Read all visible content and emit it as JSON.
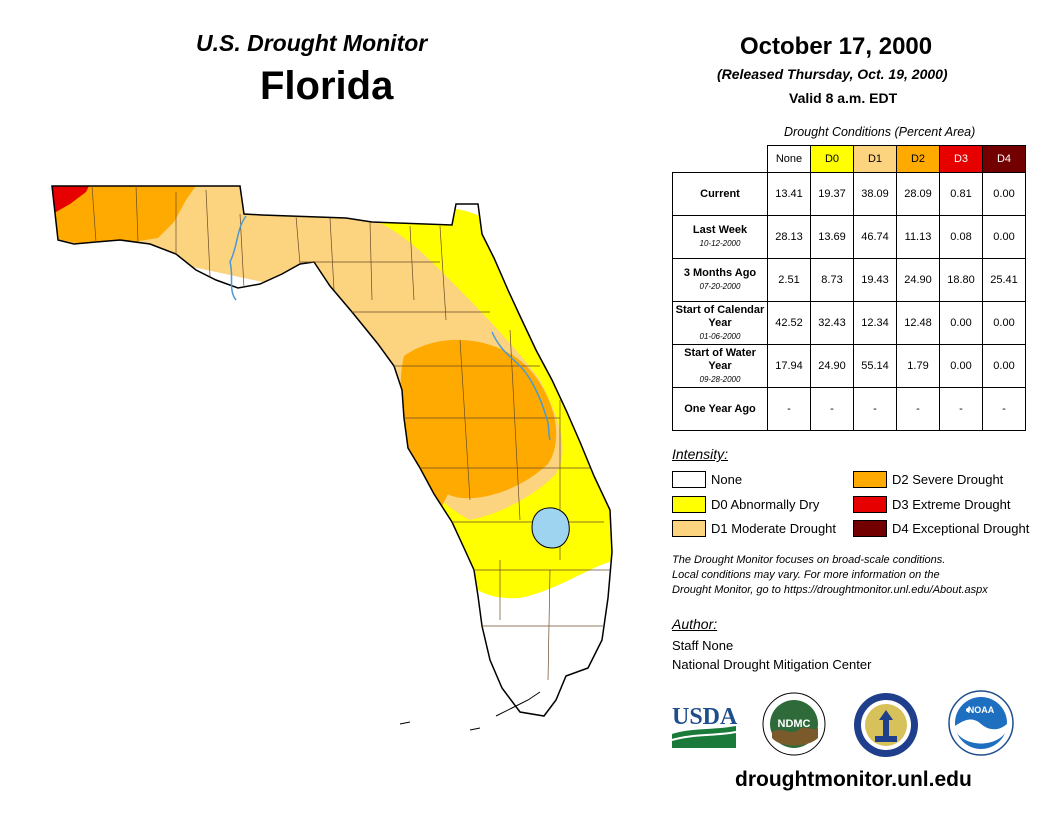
{
  "header": {
    "monitor_title": "U.S. Drought Monitor",
    "state": "Florida",
    "date": "October 17, 2000",
    "released": "(Released Thursday, Oct. 19, 2000)",
    "valid": "Valid 8 a.m. EDT"
  },
  "table": {
    "caption": "Drought Conditions (Percent Area)",
    "columns": [
      {
        "label": "None",
        "bg": "#ffffff",
        "fg": "#000000"
      },
      {
        "label": "D0",
        "bg": "#ffff00",
        "fg": "#000000"
      },
      {
        "label": "D1",
        "bg": "#fcd37f",
        "fg": "#000000"
      },
      {
        "label": "D2",
        "bg": "#ffaa00",
        "fg": "#000000"
      },
      {
        "label": "D3",
        "bg": "#e60000",
        "fg": "#ffffff"
      },
      {
        "label": "D4",
        "bg": "#730000",
        "fg": "#ffffff"
      }
    ],
    "rows": [
      {
        "label": "Current",
        "date": "",
        "values": [
          "13.41",
          "19.37",
          "38.09",
          "28.09",
          "0.81",
          "0.00"
        ]
      },
      {
        "label": "Last Week",
        "date": "10-12-2000",
        "values": [
          "28.13",
          "13.69",
          "46.74",
          "11.13",
          "0.08",
          "0.00"
        ]
      },
      {
        "label": "3 Months Ago",
        "date": "07-20-2000",
        "values": [
          "2.51",
          "8.73",
          "19.43",
          "24.90",
          "18.80",
          "25.41"
        ]
      },
      {
        "label": "Start of Calendar Year",
        "date": "01-06-2000",
        "values": [
          "42.52",
          "32.43",
          "12.34",
          "12.48",
          "0.00",
          "0.00"
        ]
      },
      {
        "label": "Start of Water Year",
        "date": "09-28-2000",
        "values": [
          "17.94",
          "24.90",
          "55.14",
          "1.79",
          "0.00",
          "0.00"
        ]
      },
      {
        "label": "One Year Ago",
        "date": "",
        "values": [
          "-",
          "-",
          "-",
          "-",
          "-",
          "-"
        ]
      }
    ]
  },
  "legend": {
    "title": "Intensity:",
    "items": [
      {
        "label": "None",
        "color": "#ffffff"
      },
      {
        "label": "D0 Abnormally Dry",
        "color": "#ffff00"
      },
      {
        "label": "D1 Moderate Drought",
        "color": "#fcd37f"
      },
      {
        "label": "D2 Severe Drought",
        "color": "#ffaa00"
      },
      {
        "label": "D3 Extreme Drought",
        "color": "#e60000"
      },
      {
        "label": "D4 Exceptional Drought",
        "color": "#730000"
      }
    ]
  },
  "note": {
    "line1": "The Drought Monitor focuses on broad-scale conditions.",
    "line2": "Local conditions may vary. For more information on the",
    "line3": "Drought Monitor, go to https://droughtmonitor.unl.edu/About.aspx"
  },
  "author": {
    "title": "Author:",
    "name": "Staff None",
    "org": "National Drought Mitigation Center"
  },
  "logos": {
    "usda": "USDA",
    "ndmc": "NDMC",
    "noaa": "NOAA"
  },
  "website": "droughtmonitor.unl.edu"
}
